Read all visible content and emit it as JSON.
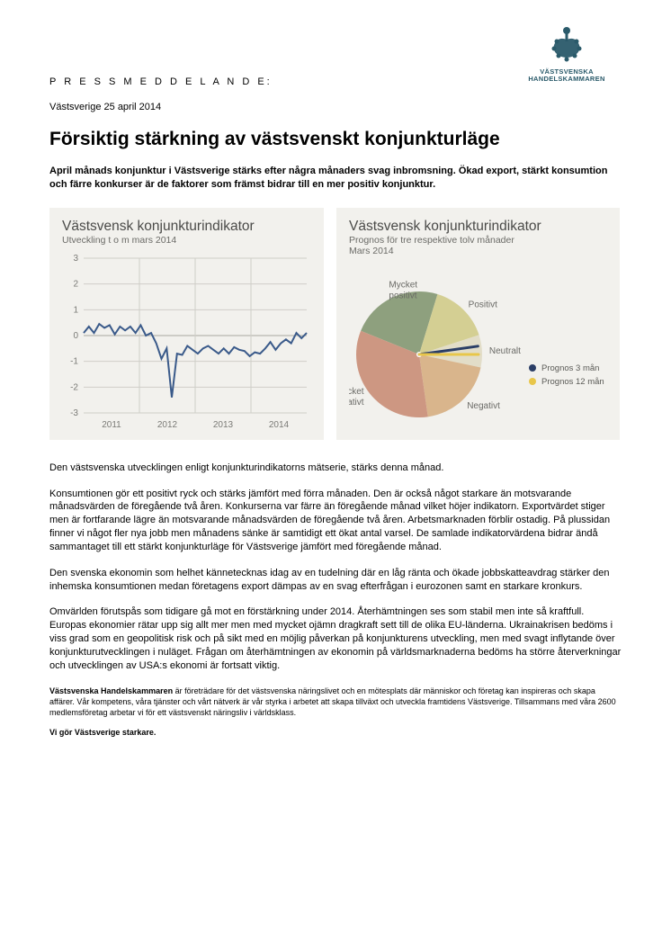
{
  "logo": {
    "line1": "VÄSTSVENSKA",
    "line2": "HANDELSKAMMAREN",
    "color": "#2a5a6a"
  },
  "doc_type": "P R E S S M E D D E L A N D E:",
  "date_line": "Västsverige 25 april 2014",
  "headline": "Försiktig stärkning av västsvenskt konjunkturläge",
  "lead": "April månads konjunktur i Västsverige stärks efter några månaders svag inbromsning. Ökad export, stärkt konsumtion och färre konkurser är de faktorer som främst bidrar till en mer positiv konjunktur.",
  "chart_left": {
    "type": "line",
    "title": "Västsvensk konjunkturindikator",
    "subtitle": "Utveckling t o m mars 2014",
    "background_color": "#f2f1ed",
    "grid_color": "#cfcec8",
    "line_color": "#3a5a8a",
    "text_color": "#6a6a66",
    "ylim": [
      -3,
      3
    ],
    "yticks": [
      -3,
      -2,
      -1,
      0,
      1,
      2,
      3
    ],
    "xlabels": [
      "2011",
      "2012",
      "2013",
      "2014"
    ],
    "values": [
      0.1,
      0.35,
      0.1,
      0.45,
      0.3,
      0.4,
      0.05,
      0.35,
      0.2,
      0.35,
      0.1,
      0.4,
      0.0,
      0.1,
      -0.3,
      -0.9,
      -0.5,
      -2.4,
      -0.7,
      -0.75,
      -0.4,
      -0.55,
      -0.7,
      -0.5,
      -0.4,
      -0.55,
      -0.7,
      -0.5,
      -0.7,
      -0.45,
      -0.55,
      -0.6,
      -0.8,
      -0.65,
      -0.7,
      -0.5,
      -0.25,
      -0.55,
      -0.3,
      -0.15,
      -0.3,
      0.1,
      -0.1,
      0.1
    ]
  },
  "chart_right": {
    "type": "pie",
    "title": "Västsvensk konjunkturindikator",
    "subtitle": "Prognos för tre respektive tolv månader\nMars 2014",
    "background_color": "#f2f1ed",
    "text_color": "#6a6a66",
    "slices": [
      {
        "label": "Mycket positivt",
        "color": "#8ea07e",
        "angle_deg": 85
      },
      {
        "label": "Positivt",
        "color": "#d4cf93",
        "angle_deg": 55
      },
      {
        "label": "Neutralt",
        "color": "#e2ddc8",
        "angle_deg": 30
      },
      {
        "label": "Negativt",
        "color": "#d9b58c",
        "angle_deg": 70
      },
      {
        "label": "Mycket negativt",
        "color": "#cd9782",
        "angle_deg": 120
      }
    ],
    "needles": [
      {
        "label": "Prognos 3 mån",
        "color": "#2b3e66",
        "angle_from_top_deg": 82
      },
      {
        "label": "Prognos 12 mån",
        "color": "#e8c64a",
        "angle_from_top_deg": 90
      }
    ]
  },
  "body": [
    "Den västsvenska utvecklingen enligt konjunkturindikatorns mätserie, stärks denna månad.",
    "Konsumtionen gör ett positivt ryck och stärks jämfört med förra månaden. Den är också något starkare än motsvarande månadsvärden de föregående två åren. Konkurserna var färre än föregående månad vilket höjer indikatorn. Exportvärdet stiger men är fortfarande lägre än motsvarande månadsvärden de föregående två åren. Arbetsmarknaden förblir ostadig. På plussidan finner vi något fler nya jobb men månadens sänke är samtidigt ett ökat antal varsel. De samlade indikatorvärdena bidrar ändå sammantaget till ett stärkt konjunkturläge för Västsverige jämfört med föregående månad.",
    "Den svenska ekonomin som helhet kännetecknas idag av en tudelning där en låg ränta och ökade jobbskatteavdrag stärker den inhemska konsumtionen medan företagens export dämpas av en svag efterfrågan i eurozonen samt en starkare kronkurs.",
    "Omvärlden förutspås som tidigare gå mot en förstärkning under 2014. Återhämtningen ses som stabil men inte så kraftfull. Europas ekonomier rätar upp sig allt mer men med mycket ojämn dragkraft sett till de olika EU-länderna.  Ukrainakrisen bedöms i viss grad som en geopolitisk risk och på sikt med en möjlig påverkan på konjunkturens utveckling, men med svagt inflytande över konjunkturutvecklingen i nuläget. Frågan om återhämtningen av ekonomin på världsmarknaderna bedöms ha större återverkningar och utvecklingen av USA:s ekonomi är fortsatt viktig."
  ],
  "footer": {
    "bold_prefix": "Västsvenska Handelskammaren",
    "text": " är företrädare för det västsvenska näringslivet och en mötesplats där människor och företag kan inspireras och skapa affärer. Vår kompetens, våra tjänster och vårt nätverk är vår styrka i arbetet att skapa tillväxt och utveckla framtidens Västsverige. Tillsammans med våra 2600 medlemsföretag arbetar vi för ett västsvenskt näringsliv i världsklass.",
    "tagline": "Vi gör Västsverige starkare."
  }
}
